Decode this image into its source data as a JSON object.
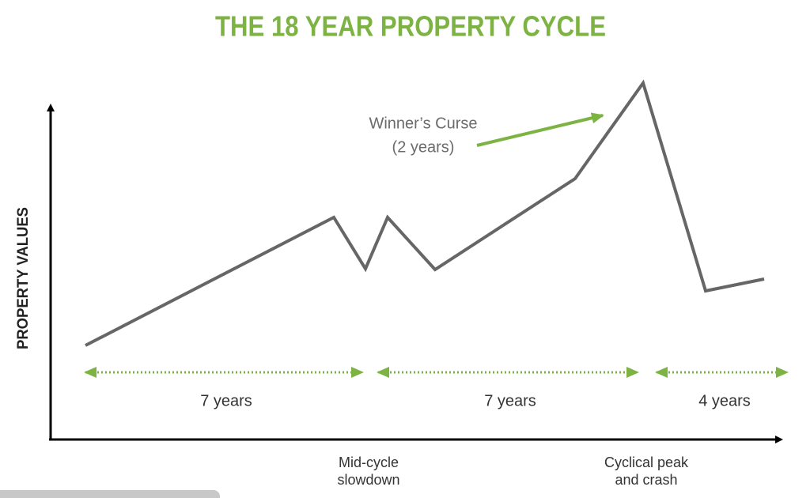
{
  "title": "THE 18 YEAR PROPERTY CYCLE",
  "y_axis_label": "PROPERTY VALUES",
  "annotation": {
    "line1": "Winner’s Curse",
    "line2": "(2 years)"
  },
  "spans": [
    "7 years",
    "7 years",
    "4 years"
  ],
  "x_labels": [
    {
      "line1": "Mid-cycle",
      "line2": "slowdown"
    },
    {
      "line1": "Cyclical peak",
      "line2": "and crash"
    }
  ]
}
